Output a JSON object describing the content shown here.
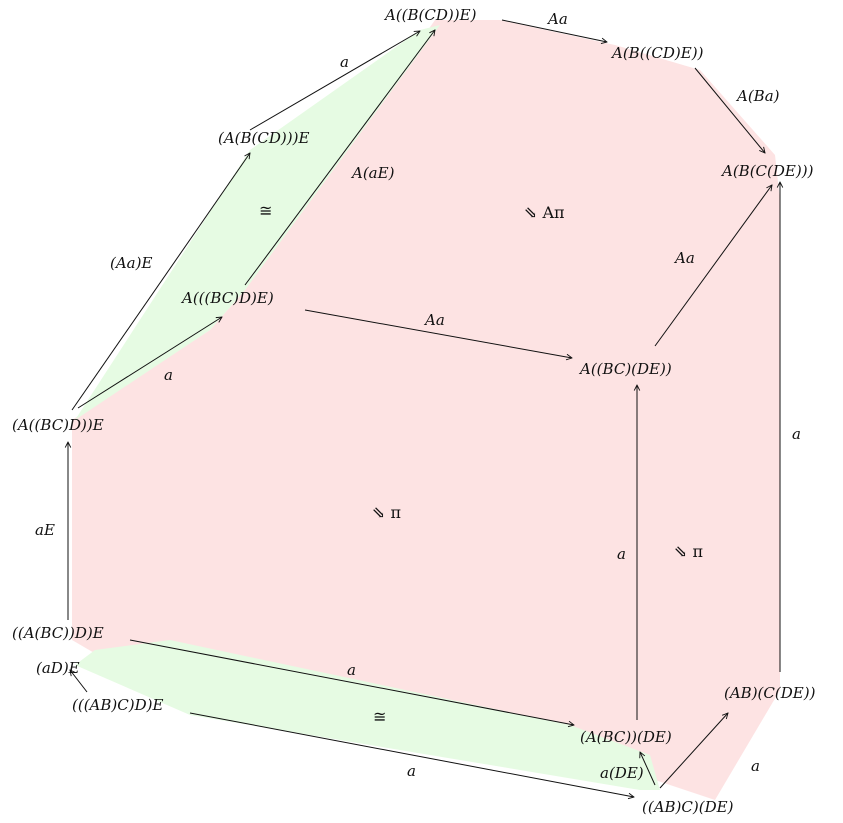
{
  "colors": {
    "pink_region": "#fde3e3",
    "green_region": "#e6fbe3",
    "stroke": "#111111"
  },
  "nodes": {
    "n1": "A((B(CD))E)",
    "n2": "A(B((CD)E))",
    "n3": "A(B(C(DE)))",
    "n4": "(A(B(CD)))E",
    "n5": "A(((BC)D)E)",
    "n6": "A((BC)(DE))",
    "n7": "(A((BC)D))E",
    "n8": "((A(BC))D)E",
    "n9": "(((AB)C)D)E",
    "n10": "(A(BC))(DE)",
    "n11": "(AB)(C(DE))",
    "n12": "((AB)C)(DE)"
  },
  "edges": {
    "e_aa_top": "Aa",
    "e_aba": "A(Ba)",
    "e_a_left": "a",
    "e_aae": "(Aa)E",
    "e_a_ae": "A(aE)",
    "e_aa_mid": "Aa",
    "e_aa_right": "Aa",
    "e_a_low": "a",
    "e_ae": "aE",
    "e_a_vert": "a",
    "e_a_right": "a",
    "e_ade": "(aD)E",
    "e_a_bottom1": "a",
    "e_a_bottom2": "a",
    "e_a_de": "a(DE)",
    "e_a_br": "a"
  },
  "cells": {
    "c_top": "⇘  Aπ",
    "c_mid": "⇘  π",
    "c_right": "⇘  π",
    "c_iso_left": "≅",
    "c_iso_bottom": "≅"
  }
}
